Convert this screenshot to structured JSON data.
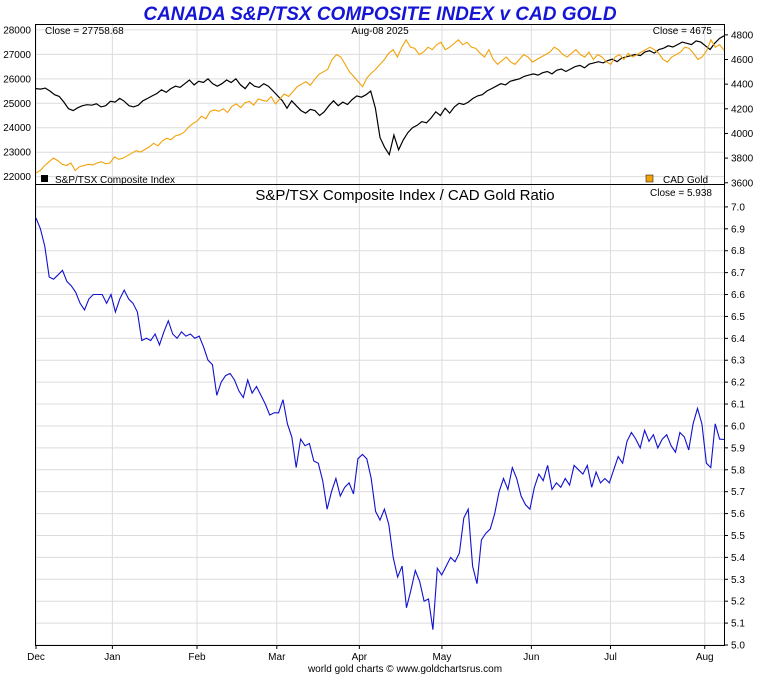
{
  "chart_data": [
    {
      "type": "line",
      "title": "CANADA S&P/TSX COMPOSITE INDEX v CAD GOLD",
      "date_label": "Aug-08  2025",
      "left_close": "Close = 27758.68",
      "right_close": "Close = 4675",
      "left_axis": {
        "min": 21700,
        "max": 28200,
        "ticks": [
          "22000",
          "23000",
          "24000",
          "25000",
          "26000",
          "27000",
          "28000"
        ]
      },
      "right_axis": {
        "min": 3590,
        "max": 4880,
        "ticks": [
          "3600",
          "3800",
          "4000",
          "4200",
          "4400",
          "4600",
          "4800"
        ]
      },
      "legend": [
        {
          "name": "S&P/TSX Composite Index",
          "color": "#000000"
        },
        {
          "name": "CAD Gold",
          "color": "#f2a20a"
        }
      ],
      "series": [
        {
          "name": "S&P/TSX Composite Index",
          "axis": "left",
          "color": "#000000",
          "values": [
            25600,
            25580,
            25620,
            25500,
            25350,
            25280,
            25050,
            24780,
            24700,
            24820,
            24900,
            24940,
            24920,
            24980,
            24850,
            24900,
            25080,
            25050,
            25200,
            25080,
            24900,
            24850,
            24920,
            25100,
            25200,
            25300,
            25400,
            25550,
            25450,
            25600,
            25700,
            25650,
            25800,
            25950,
            25750,
            25900,
            25850,
            26000,
            25800,
            25700,
            25800,
            25950,
            25850,
            26000,
            25750,
            25600,
            25850,
            25700,
            25650,
            25800,
            25700,
            25500,
            25300,
            25100,
            24800,
            25100,
            24900,
            24700,
            24600,
            24750,
            24700,
            24500,
            24650,
            24900,
            25100,
            24900,
            25050,
            24950,
            25150,
            25300,
            25250,
            25350,
            25500,
            24800,
            23600,
            23200,
            22900,
            23700,
            23100,
            23500,
            23800,
            24000,
            24100,
            24250,
            24200,
            24400,
            24650,
            24500,
            24800,
            24600,
            24850,
            25000,
            24950,
            25050,
            25200,
            25300,
            25350,
            25500,
            25600,
            25700,
            25800,
            25750,
            25900,
            25950,
            26000,
            26100,
            26150,
            26200,
            26150,
            26250,
            26300,
            26200,
            26350,
            26400,
            26300,
            26400,
            26500,
            26550,
            26450,
            26600,
            26650,
            26700,
            26650,
            26750,
            26800,
            26700,
            26850,
            26900,
            26950,
            27000,
            26950,
            27100,
            27150,
            27050,
            27200,
            27250,
            27350,
            27300,
            27400,
            27500,
            27450,
            27400,
            27550,
            27500,
            27350,
            27200,
            27450,
            27650,
            27758.68
          ]
        },
        {
          "name": "CAD Gold",
          "axis": "right",
          "color": "#f2a20a",
          "values": [
            3680,
            3700,
            3740,
            3770,
            3800,
            3780,
            3750,
            3740,
            3760,
            3700,
            3730,
            3740,
            3750,
            3745,
            3760,
            3770,
            3755,
            3760,
            3810,
            3790,
            3800,
            3820,
            3840,
            3860,
            3850,
            3870,
            3890,
            3920,
            3900,
            3940,
            3960,
            3950,
            3980,
            3990,
            4010,
            4050,
            4080,
            4100,
            4140,
            4120,
            4180,
            4190,
            4180,
            4200,
            4170,
            4220,
            4240,
            4210,
            4250,
            4260,
            4230,
            4280,
            4270,
            4260,
            4300,
            4240,
            4280,
            4320,
            4300,
            4340,
            4380,
            4400,
            4420,
            4390,
            4440,
            4480,
            4500,
            4520,
            4600,
            4640,
            4620,
            4560,
            4500,
            4460,
            4420,
            4380,
            4450,
            4490,
            4520,
            4560,
            4600,
            4650,
            4680,
            4620,
            4700,
            4760,
            4700,
            4690,
            4640,
            4660,
            4700,
            4680,
            4720,
            4740,
            4680,
            4700,
            4730,
            4760,
            4720,
            4740,
            4700,
            4690,
            4650,
            4620,
            4680,
            4600,
            4560,
            4590,
            4620,
            4580,
            4560,
            4600,
            4640,
            4620,
            4580,
            4600,
            4620,
            4640,
            4660,
            4700,
            4680,
            4640,
            4620,
            4650,
            4680,
            4640,
            4620,
            4660,
            4600,
            4640,
            4620,
            4580,
            4560,
            4620,
            4640,
            4600,
            4650,
            4620,
            4640,
            4660,
            4680,
            4700,
            4680,
            4650,
            4600,
            4580,
            4620,
            4640,
            4660,
            4700,
            4690,
            4650,
            4600,
            4620,
            4670,
            4760,
            4700,
            4720,
            4675
          ]
        }
      ]
    },
    {
      "type": "line",
      "title": "S&P/TSX Composite Index  /  CAD Gold Ratio",
      "close_label": "Close = 5.938",
      "axis": {
        "min": 5.0,
        "max": 7.1,
        "ticks": [
          "5.0",
          "5.1",
          "5.2",
          "5.3",
          "5.4",
          "5.5",
          "5.6",
          "5.7",
          "5.8",
          "5.9",
          "6.0",
          "6.1",
          "6.2",
          "6.3",
          "6.4",
          "6.5",
          "6.6",
          "6.7",
          "6.8",
          "6.9",
          "7.0"
        ]
      },
      "series": [
        {
          "name": "S&P/TSX Composite Index / CAD Gold Ratio",
          "color": "#1010d0",
          "values": [
            6.95,
            6.9,
            6.82,
            6.68,
            6.67,
            6.69,
            6.71,
            6.66,
            6.64,
            6.61,
            6.56,
            6.53,
            6.58,
            6.6,
            6.6,
            6.6,
            6.56,
            6.6,
            6.52,
            6.58,
            6.62,
            6.58,
            6.56,
            6.52,
            6.39,
            6.4,
            6.39,
            6.42,
            6.37,
            6.43,
            6.48,
            6.42,
            6.4,
            6.43,
            6.41,
            6.42,
            6.4,
            6.41,
            6.36,
            6.3,
            6.28,
            6.14,
            6.2,
            6.23,
            6.24,
            6.21,
            6.16,
            6.13,
            6.21,
            6.15,
            6.18,
            6.14,
            6.1,
            6.05,
            6.06,
            6.06,
            6.12,
            6.01,
            5.95,
            5.81,
            5.94,
            5.91,
            5.92,
            5.84,
            5.83,
            5.75,
            5.62,
            5.7,
            5.76,
            5.68,
            5.72,
            5.74,
            5.69,
            5.85,
            5.87,
            5.85,
            5.76,
            5.61,
            5.57,
            5.62,
            5.55,
            5.4,
            5.31,
            5.36,
            5.17,
            5.25,
            5.34,
            5.29,
            5.2,
            5.21,
            5.07,
            5.35,
            5.32,
            5.36,
            5.4,
            5.38,
            5.42,
            5.58,
            5.62,
            5.36,
            5.28,
            5.48,
            5.51,
            5.53,
            5.6,
            5.7,
            5.76,
            5.71,
            5.81,
            5.76,
            5.68,
            5.64,
            5.62,
            5.72,
            5.78,
            5.75,
            5.82,
            5.71,
            5.74,
            5.72,
            5.76,
            5.73,
            5.82,
            5.8,
            5.78,
            5.82,
            5.72,
            5.79,
            5.74,
            5.76,
            5.74,
            5.8,
            5.86,
            5.83,
            5.93,
            5.97,
            5.94,
            5.9,
            5.98,
            5.93,
            5.96,
            5.9,
            5.94,
            5.96,
            5.91,
            5.88,
            5.97,
            5.95,
            5.89,
            6.01,
            6.08,
            6.01,
            5.83,
            5.81,
            6.01,
            5.94,
            5.938
          ]
        }
      ],
      "x_labels": [
        "Dec",
        "Jan",
        "Feb",
        "Mar",
        "Apr",
        "May",
        "Jun",
        "Jul",
        "Aug"
      ]
    }
  ],
  "footer": "world gold charts © www.goldchartsrus.com"
}
